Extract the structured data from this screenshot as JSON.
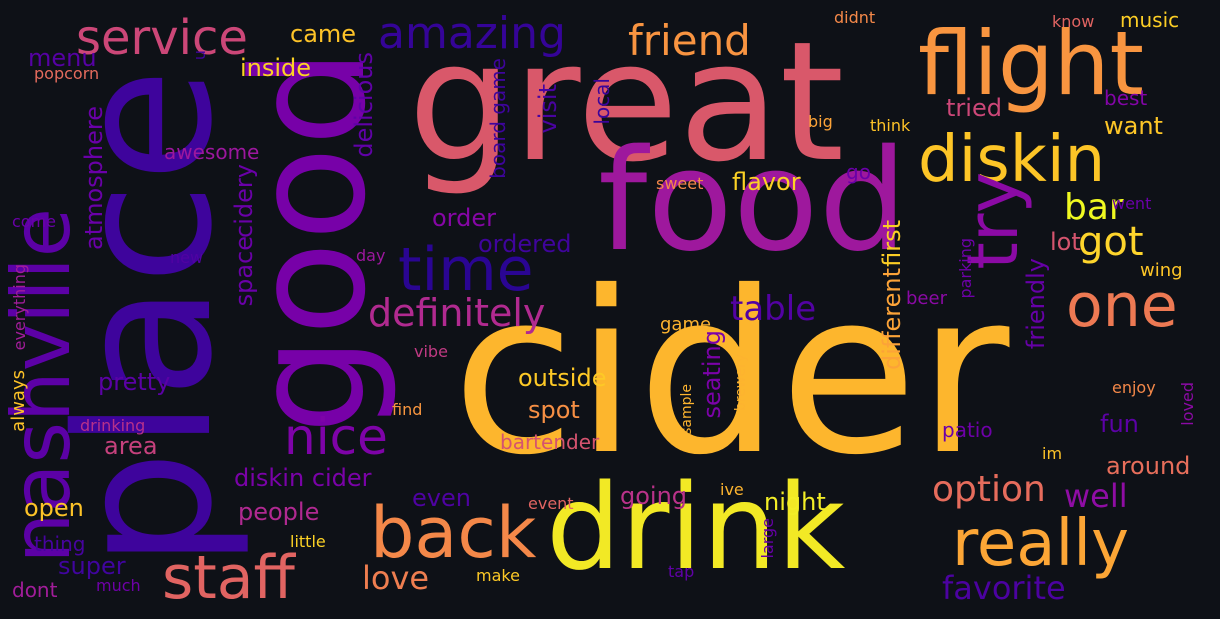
{
  "background_color": "#0e1117",
  "words": [
    {
      "text": "cider",
      "color": "#fdb62d"
    },
    {
      "text": "great",
      "color": "#d9586a"
    },
    {
      "text": "place",
      "color": "#3e049c"
    },
    {
      "text": "food",
      "color": "#9e189d"
    },
    {
      "text": "drink",
      "color": "#f2e925"
    },
    {
      "text": "good",
      "color": "#7701a8"
    },
    {
      "text": "flight",
      "color": "#f89540"
    },
    {
      "text": "diskin",
      "color": "#fdc527"
    },
    {
      "text": "nashville",
      "color": "#5c01a6"
    },
    {
      "text": "staff",
      "color": "#e16462"
    },
    {
      "text": "back",
      "color": "#f48849"
    },
    {
      "text": "really",
      "color": "#fca636"
    },
    {
      "text": "time",
      "color": "#2a0593"
    },
    {
      "text": "try",
      "color": "#8b0aa5"
    },
    {
      "text": "one",
      "color": "#ed7953"
    },
    {
      "text": "nice",
      "color": "#7e03a8"
    },
    {
      "text": "service",
      "color": "#cc4778"
    },
    {
      "text": "amazing",
      "color": "#350498"
    },
    {
      "text": "friend",
      "color": "#f89441"
    },
    {
      "text": "definitely",
      "color": "#b12a90"
    },
    {
      "text": "got",
      "color": "#fed52c"
    },
    {
      "text": "option",
      "color": "#e66c5c"
    },
    {
      "text": "bar",
      "color": "#f0f921"
    },
    {
      "text": "table",
      "color": "#5302a3"
    },
    {
      "text": "well",
      "color": "#8f0da4"
    },
    {
      "text": "favorite",
      "color": "#4c02a1"
    },
    {
      "text": "love",
      "color": "#ef7e50"
    },
    {
      "text": "space",
      "color": "#6a00a8"
    },
    {
      "text": "cidery",
      "color": "#6a00a8"
    },
    {
      "text": "atmosphere",
      "color": "#6a00a8"
    },
    {
      "text": "delicious",
      "color": "#6001a7"
    },
    {
      "text": "diskin cider",
      "color": "#7a02a8"
    },
    {
      "text": "people",
      "color": "#b02991"
    },
    {
      "text": "visit",
      "color": "#4903a0"
    },
    {
      "text": "spot",
      "color": "#f68f44"
    },
    {
      "text": "outside",
      "color": "#fdc926"
    },
    {
      "text": "seating",
      "color": "#7b02a8"
    },
    {
      "text": "friendly",
      "color": "#6600a7"
    },
    {
      "text": "pretty",
      "color": "#5b01a5"
    },
    {
      "text": "area",
      "color": "#c6417d"
    },
    {
      "text": "open",
      "color": "#fdc328"
    },
    {
      "text": "order",
      "color": "#8606a6"
    },
    {
      "text": "ordered",
      "color": "#3f049c"
    },
    {
      "text": "night",
      "color": "#f3ee27"
    },
    {
      "text": "fun",
      "color": "#5c01a6"
    },
    {
      "text": "tried",
      "color": "#cc4778"
    },
    {
      "text": "want",
      "color": "#fdc627"
    },
    {
      "text": "lot",
      "color": "#d5546e"
    },
    {
      "text": "first",
      "color": "#fcce25"
    },
    {
      "text": "different",
      "color": "#fca338"
    },
    {
      "text": "flavor",
      "color": "#fcd225"
    },
    {
      "text": "going",
      "color": "#b93289"
    },
    {
      "text": "even",
      "color": "#4f02a2"
    },
    {
      "text": "super",
      "color": "#40049f"
    },
    {
      "text": "around",
      "color": "#e76e5b"
    },
    {
      "text": "menu",
      "color": "#5601a4"
    },
    {
      "text": "came",
      "color": "#fdc328"
    },
    {
      "text": "inside",
      "color": "#fcd225"
    },
    {
      "text": "awesome",
      "color": "#9c179e"
    },
    {
      "text": "bartender",
      "color": "#d5536f"
    },
    {
      "text": "patio",
      "color": "#6e00a8"
    },
    {
      "text": "music",
      "color": "#fcce25"
    },
    {
      "text": "best",
      "color": "#8305a7"
    },
    {
      "text": "local",
      "color": "#3b049a"
    },
    {
      "text": "go",
      "color": "#6a00a8"
    },
    {
      "text": "board game",
      "color": "#3e049c"
    },
    {
      "text": "beer",
      "color": "#8b0aa5"
    },
    {
      "text": "wing",
      "color": "#fdc527"
    },
    {
      "text": "dont",
      "color": "#a21d9a"
    },
    {
      "text": "thing",
      "color": "#47039f"
    },
    {
      "text": "always",
      "color": "#fdc328"
    },
    {
      "text": "drinking",
      "color": "#b6308b"
    },
    {
      "text": "find",
      "color": "#f8963f"
    },
    {
      "text": "vibe",
      "color": "#c03a83"
    },
    {
      "text": "game",
      "color": "#fdb32f"
    },
    {
      "text": "sweet",
      "color": "#f48849"
    },
    {
      "text": "big",
      "color": "#fca338"
    },
    {
      "text": "think",
      "color": "#fdc227"
    },
    {
      "text": "didnt",
      "color": "#f48849"
    },
    {
      "text": "know",
      "color": "#e16462"
    },
    {
      "text": "went",
      "color": "#6a00a8"
    },
    {
      "text": "parking",
      "color": "#6e00a8"
    },
    {
      "text": "day",
      "color": "#9c179e"
    },
    {
      "text": "new",
      "color": "#5002a2"
    },
    {
      "text": "come",
      "color": "#6a00a8"
    },
    {
      "text": "everything",
      "color": "#a21d9a"
    },
    {
      "text": "popcorn",
      "color": "#e56b5d"
    },
    {
      "text": "u",
      "color": "#3e049c"
    },
    {
      "text": "enjoy",
      "color": "#f48849"
    },
    {
      "text": "loved",
      "color": "#8b0aa5"
    },
    {
      "text": "im",
      "color": "#fdc328"
    },
    {
      "text": "event",
      "color": "#e16462"
    },
    {
      "text": "ive",
      "color": "#fdb42f"
    },
    {
      "text": "sample",
      "color": "#fdb42f"
    },
    {
      "text": "brewery",
      "color": "#fdb32f"
    },
    {
      "text": "large",
      "color": "#6600a7"
    },
    {
      "text": "tap",
      "color": "#6001a7"
    },
    {
      "text": "make",
      "color": "#fdc926"
    },
    {
      "text": "little",
      "color": "#fcd225"
    },
    {
      "text": "much",
      "color": "#6e00a8"
    }
  ]
}
